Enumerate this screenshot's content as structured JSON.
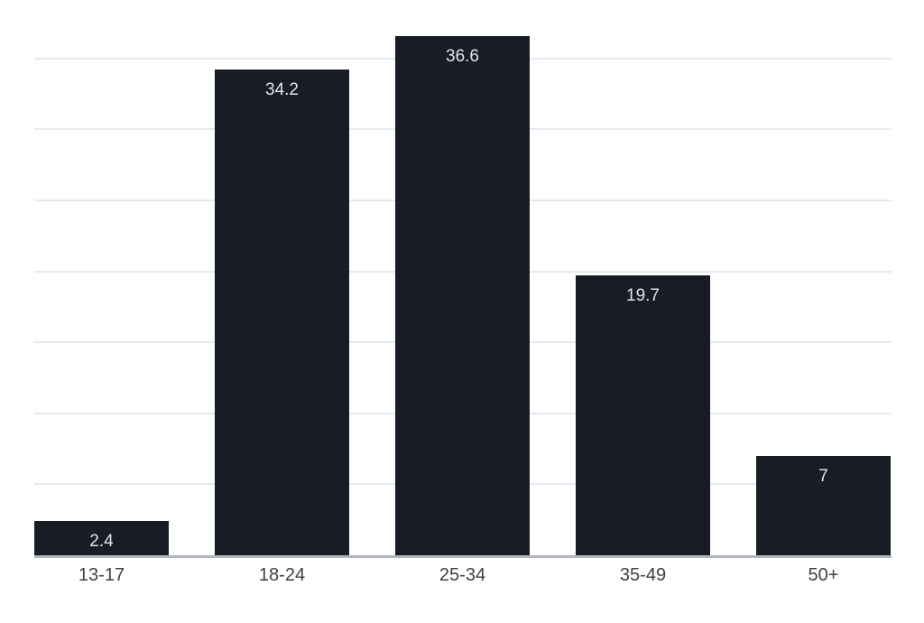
{
  "chart_data": {
    "type": "bar",
    "categories": [
      "13-17",
      "18-24",
      "25-34",
      "35-49",
      "50+"
    ],
    "values": [
      2.4,
      34.2,
      36.6,
      19.7,
      7
    ],
    "value_labels": [
      "2.4",
      "34.2",
      "36.6",
      "19.7",
      "7"
    ],
    "title": "",
    "xlabel": "",
    "ylabel": "",
    "ylim": [
      0,
      38.5
    ],
    "grid": {
      "show": true,
      "orientation": "horizontal",
      "interval": 5,
      "lines_at": [
        5,
        10,
        15,
        20,
        25,
        30,
        35
      ],
      "y_axis_tick_labels_visible": false
    },
    "legend": "none",
    "value_label_position": "inside-top",
    "colors": {
      "bar": "#181c25",
      "value_label": "#e2e4e8",
      "category_label": "#3d4044",
      "gridline": "#e4e9f2",
      "axis_line": "#b1b6bc",
      "background": "#ffffff"
    }
  }
}
